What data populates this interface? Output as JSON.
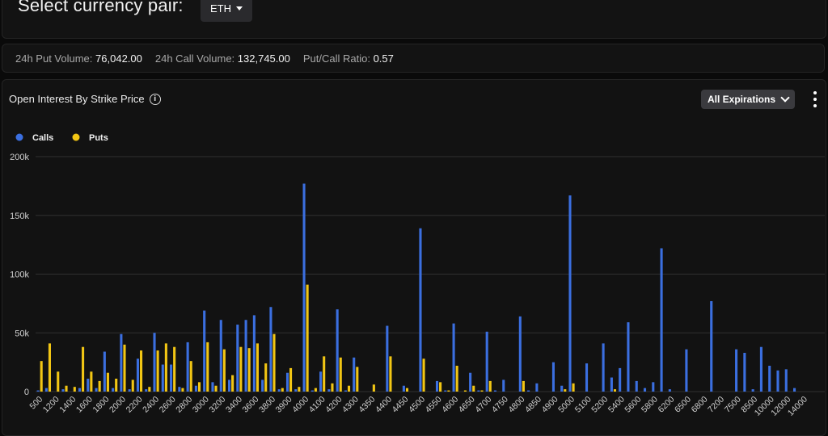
{
  "header": {
    "title": "Select currency pair:",
    "pair": "ETH"
  },
  "stats": {
    "put_volume_label": "24h Put Volume:",
    "put_volume": "76,042.00",
    "call_volume_label": "24h Call Volume:",
    "call_volume": "132,745.00",
    "ratio_label": "Put/Call Ratio:",
    "ratio": "0.57"
  },
  "chart_panel": {
    "title": "Open Interest By Strike Price",
    "expiration": "All Expirations"
  },
  "colors": {
    "calls": "#3b6fe0",
    "puts": "#f2c614",
    "grid": "#303030",
    "axis_text": "#d0d0d0"
  },
  "chart_data": {
    "type": "bar",
    "legend": [
      "Calls",
      "Puts"
    ],
    "ylim": [
      0,
      200000
    ],
    "yticks": [
      0,
      50000,
      100000,
      150000,
      200000
    ],
    "ytick_labels": [
      "0",
      "50k",
      "100k",
      "150k",
      "200k"
    ],
    "categories": [
      "500",
      "1000",
      "1200",
      "1300",
      "1400",
      "1500",
      "1600",
      "1700",
      "1800",
      "1900",
      "2000",
      "2100",
      "2200",
      "2300",
      "2400",
      "2500",
      "2600",
      "2700",
      "2800",
      "2900",
      "3000",
      "3100",
      "3200",
      "3300",
      "3400",
      "3500",
      "3600",
      "3700",
      "3800",
      "3850",
      "3900",
      "3950",
      "4000",
      "4050",
      "4100",
      "4150",
      "4200",
      "4250",
      "4300",
      "4330",
      "4350",
      "4370",
      "4400",
      "4420",
      "4450",
      "4480",
      "4500",
      "4520",
      "4550",
      "4580",
      "4600",
      "4620",
      "4650",
      "4680",
      "4700",
      "4720",
      "4750",
      "4780",
      "4800",
      "4820",
      "4850",
      "4870",
      "4900",
      "4950",
      "5000",
      "5050",
      "5100",
      "5150",
      "5200",
      "5300",
      "5400",
      "5500",
      "5600",
      "5700",
      "5800",
      "6000",
      "6200",
      "6300",
      "6500",
      "6600",
      "6800",
      "7000",
      "7200",
      "7400",
      "7500",
      "8000",
      "8500",
      "9000",
      "10000",
      "11000",
      "12000",
      "13000",
      "14000"
    ],
    "xtick_labels": [
      "500",
      "1200",
      "1400",
      "1600",
      "1800",
      "2000",
      "2200",
      "2400",
      "2600",
      "2800",
      "3000",
      "3200",
      "3400",
      "3600",
      "3800",
      "3900",
      "4000",
      "4100",
      "4200",
      "4300",
      "4350",
      "4400",
      "4450",
      "4500",
      "4550",
      "4600",
      "4650",
      "4700",
      "4750",
      "4800",
      "4850",
      "4900",
      "5000",
      "5100",
      "5200",
      "5400",
      "5600",
      "5800",
      "6200",
      "6500",
      "6800",
      "7200",
      "7500",
      "8500",
      "10000",
      "12000",
      "14000"
    ],
    "series": [
      {
        "name": "Calls",
        "values": [
          1000,
          3000,
          0,
          2000,
          0,
          3000,
          11000,
          3000,
          34000,
          3000,
          49000,
          2000,
          28000,
          2000,
          50000,
          23000,
          23000,
          4000,
          42000,
          5000,
          69000,
          8000,
          61000,
          10000,
          57000,
          61000,
          65000,
          10000,
          72000,
          2000,
          16000,
          2000,
          177000,
          1000,
          17000,
          2000,
          70000,
          1000,
          29000,
          0,
          0,
          0,
          56000,
          0,
          5000,
          0,
          139000,
          0,
          9000,
          1000,
          58000,
          0,
          16000,
          1000,
          51000,
          1000,
          10000,
          0,
          64000,
          1000,
          7000,
          0,
          25000,
          5000,
          167000,
          0,
          24000,
          0,
          41000,
          12000,
          20000,
          59000,
          9000,
          3000,
          8000,
          122000,
          2000,
          0,
          36000,
          0,
          0,
          77000,
          0,
          0,
          36000,
          33000,
          2000,
          38000,
          22000,
          18000,
          19000,
          3000,
          0
        ]
      },
      {
        "name": "Puts",
        "values": [
          26000,
          41000,
          17000,
          5000,
          4000,
          38000,
          17000,
          9000,
          16000,
          11000,
          40000,
          10000,
          35000,
          4000,
          35000,
          41000,
          38000,
          3000,
          26000,
          8000,
          42000,
          5000,
          36000,
          14000,
          38000,
          37000,
          41000,
          24000,
          49000,
          3000,
          20000,
          4000,
          91000,
          3000,
          30000,
          7000,
          29000,
          5000,
          21000,
          0,
          6000,
          0,
          30000,
          0,
          3000,
          0,
          28000,
          0,
          8000,
          1000,
          22000,
          1000,
          5000,
          1000,
          9000,
          0,
          0,
          0,
          9000,
          0,
          0,
          0,
          0,
          2000,
          7000,
          0,
          0,
          0,
          0,
          2000,
          0,
          0,
          0,
          0,
          0,
          0,
          0,
          0,
          0,
          0,
          0,
          0,
          0,
          0,
          0,
          0,
          0,
          0,
          0,
          0,
          0,
          0,
          0
        ]
      }
    ]
  }
}
